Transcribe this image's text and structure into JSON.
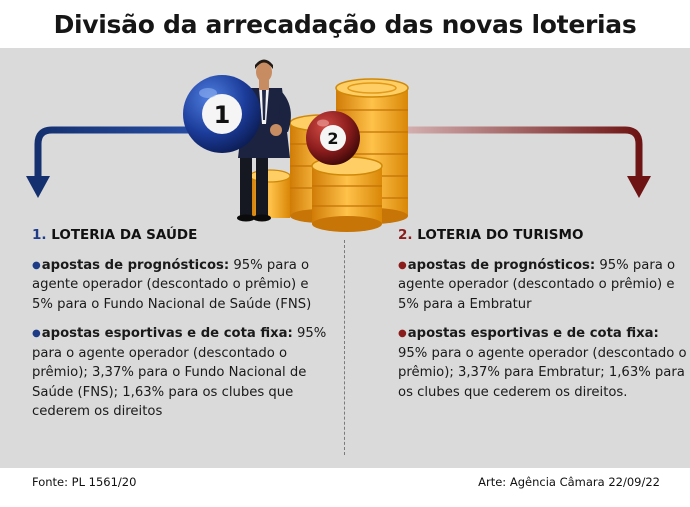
{
  "title": "Divisão da arrecadação das novas loterias",
  "colors": {
    "blue": "#1d3b86",
    "red": "#8a1c1c",
    "gold": "#f2a416",
    "panel": "#dadada"
  },
  "illustration": {
    "ball_1": "1",
    "ball_2": "2"
  },
  "left": {
    "number": "1.",
    "heading": "LOTERIA DA SAÚDE",
    "items": [
      {
        "head": "apostas de prognósticos:",
        "body": " 95% para o agente operador (descontado o prêmio) e 5% para o Fundo Nacional de Saúde (FNS)"
      },
      {
        "head": "apostas esportivas e de cota fixa:",
        "body": " 95% para o agente operador (descontado o prêmio); 3,37% para o Fundo Nacional de Saúde (FNS); 1,63% para os clubes que cederem os direitos"
      }
    ]
  },
  "right": {
    "number": "2.",
    "heading": "LOTERIA DO TURISMO",
    "items": [
      {
        "head": "apostas de prognósticos:",
        "body": " 95% para o agente operador (descontado o prêmio) e 5% para a Embratur"
      },
      {
        "head": "apostas esportivas e de cota fixa:",
        "body": " 95% para o agente operador (descontado o prêmio); 3,37% para Embratur; 1,63% para os clubes que cederem os direitos."
      }
    ]
  },
  "footer": {
    "source": "Fonte: PL 1561/20",
    "credit": "Arte: Agência Câmara 22/09/22"
  }
}
